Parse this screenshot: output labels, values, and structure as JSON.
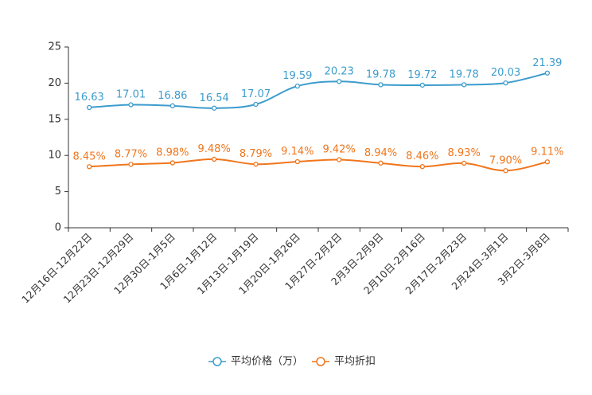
{
  "chart_data": {
    "type": "line",
    "categories": [
      "12月16日-12月22日",
      "12月23日-12月29日",
      "12月30日-1月5日",
      "1月6日-1月12日",
      "1月13日-1月19日",
      "1月20日-1月26日",
      "1月27日-2月2日",
      "2月3日-2月9日",
      "2月10日-2月16日",
      "2月17日-2月23日",
      "2月24日-3月1日",
      "3月2日-3月8日"
    ],
    "ylim": [
      0,
      25
    ],
    "yticks": [
      0,
      5,
      10,
      15,
      20,
      25
    ],
    "ytick_labels": [
      "0",
      "5",
      "10",
      "15",
      "20",
      "25"
    ],
    "legend_position": "bottom-center",
    "series": [
      {
        "name": "平均价格（万）",
        "color": "#3d9ccd",
        "values": [
          16.63,
          17.01,
          16.86,
          16.54,
          17.07,
          19.59,
          20.23,
          19.78,
          19.72,
          19.78,
          20.03,
          21.39
        ],
        "labels": [
          "16.63",
          "17.01",
          "16.86",
          "16.54",
          "17.07",
          "19.59",
          "20.23",
          "19.78",
          "19.72",
          "19.78",
          "20.03",
          "21.39"
        ]
      },
      {
        "name": "平均折扣",
        "color": "#f0761c",
        "values": [
          8.45,
          8.77,
          8.98,
          9.48,
          8.79,
          9.14,
          9.42,
          8.94,
          8.46,
          8.93,
          7.9,
          9.11
        ],
        "labels": [
          "8.45%",
          "8.77%",
          "8.98%",
          "9.48%",
          "8.79%",
          "9.14%",
          "9.42%",
          "8.94%",
          "8.46%",
          "8.93%",
          "7.90%",
          "9.11%"
        ]
      }
    ]
  }
}
